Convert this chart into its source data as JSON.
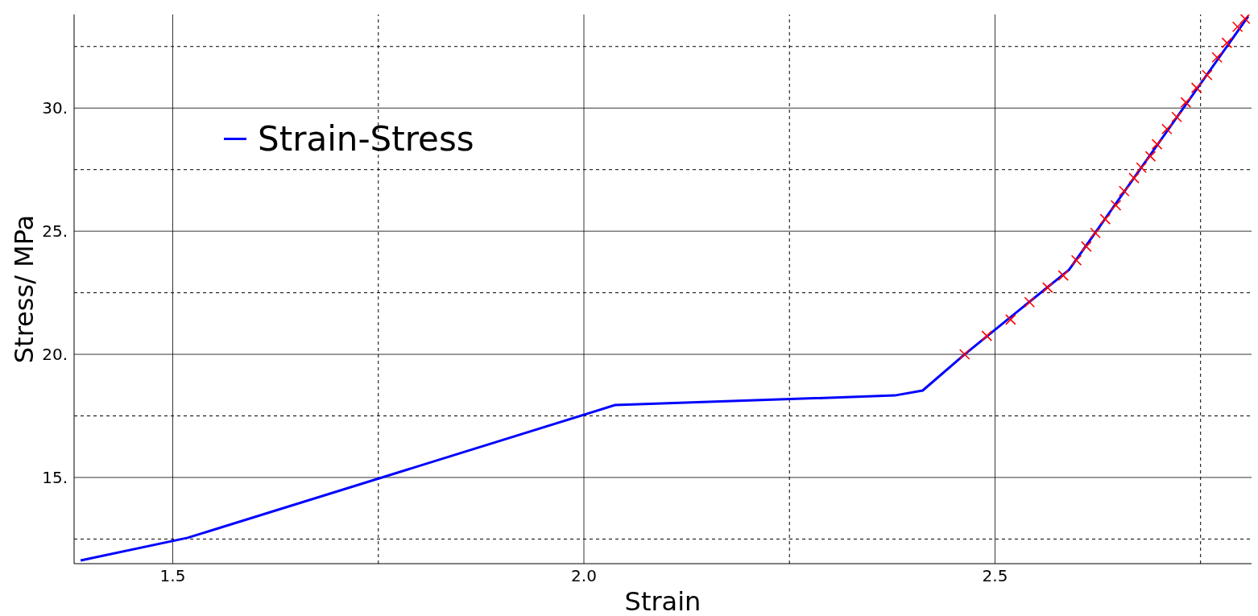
{
  "chart_data": {
    "type": "line",
    "xlabel": "Strain",
    "ylabel": "Stress/ MPa",
    "xlim": [
      1.38,
      2.812
    ],
    "ylim": [
      11.5,
      33.8
    ],
    "xticks": [
      {
        "value": 1.5,
        "label": "1.5"
      },
      {
        "value": 1.75,
        "label": null
      },
      {
        "value": 2.0,
        "label": "2.0"
      },
      {
        "value": 2.25,
        "label": null
      },
      {
        "value": 2.5,
        "label": "2.5"
      },
      {
        "value": 2.75,
        "label": null
      }
    ],
    "yticks": [
      {
        "value": 12.5,
        "label": null
      },
      {
        "value": 15,
        "label": "15."
      },
      {
        "value": 17.5,
        "label": null
      },
      {
        "value": 20,
        "label": "20."
      },
      {
        "value": 22.5,
        "label": null
      },
      {
        "value": 25,
        "label": "25."
      },
      {
        "value": 27.5,
        "label": null
      },
      {
        "value": 30,
        "label": "30."
      },
      {
        "value": 32.5,
        "label": null
      }
    ],
    "grid": true,
    "legend": "top left",
    "series": [
      {
        "name": "Strain-Stress",
        "color": "#0000ff",
        "marker": "none",
        "x": [
          1.388,
          1.518,
          2.038,
          2.378,
          2.412,
          2.463,
          2.59,
          2.808
        ],
        "values": [
          11.63,
          12.55,
          17.94,
          18.33,
          18.53,
          20.0,
          23.43,
          33.73
        ]
      },
      {
        "type": "scatter",
        "color": "#ff0000",
        "marker": "cross",
        "x": [
          2.463,
          2.49,
          2.519,
          2.542,
          2.564,
          2.583,
          2.599,
          2.611,
          2.622,
          2.634,
          2.647,
          2.657,
          2.669,
          2.678,
          2.689,
          2.697,
          2.709,
          2.721,
          2.732,
          2.745,
          2.758,
          2.77,
          2.782,
          2.795,
          2.804
        ],
        "values": [
          20.0,
          20.75,
          21.41,
          22.12,
          22.71,
          23.2,
          23.82,
          24.38,
          24.93,
          25.49,
          26.05,
          26.63,
          27.16,
          27.58,
          28.04,
          28.53,
          29.15,
          29.64,
          30.23,
          30.82,
          31.34,
          32.06,
          32.65,
          33.3,
          33.63
        ]
      }
    ]
  }
}
